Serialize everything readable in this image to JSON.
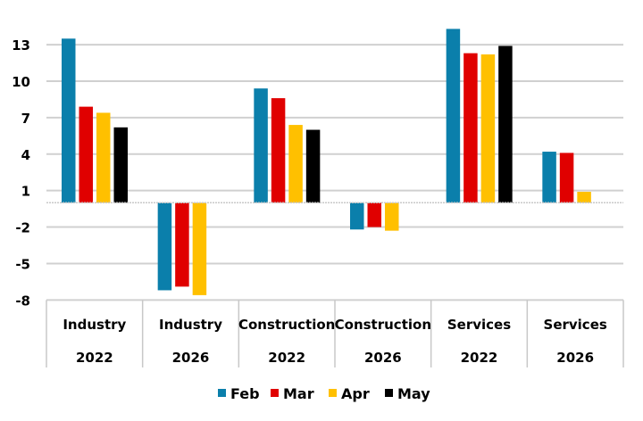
{
  "chart_data": {
    "type": "bar",
    "title": "",
    "xlabel": "",
    "ylabel": "",
    "ylim": [
      -8,
      14.5
    ],
    "yticks": [
      13,
      10,
      7,
      4,
      1,
      -2,
      -5,
      -8
    ],
    "grid": true,
    "legend_position": "bottom",
    "categories": [
      {
        "line1": "Industry",
        "line2": "2022"
      },
      {
        "line1": "Industry",
        "line2": "2026"
      },
      {
        "line1": "Construction",
        "line2": "2022"
      },
      {
        "line1": "Construction",
        "line2": "2026"
      },
      {
        "line1": "Services",
        "line2": "2022"
      },
      {
        "line1": "Services",
        "line2": "2026"
      }
    ],
    "series": [
      {
        "name": "Feb",
        "color": "#0B7FAB",
        "values": [
          13.5,
          -7.2,
          9.4,
          -2.2,
          14.3,
          4.2
        ]
      },
      {
        "name": "Mar",
        "color": "#E00000",
        "values": [
          7.9,
          -6.9,
          8.6,
          -2.0,
          12.3,
          4.1
        ]
      },
      {
        "name": "Apr",
        "color": "#FFC000",
        "values": [
          7.4,
          -7.6,
          6.4,
          -2.3,
          12.2,
          0.9
        ]
      },
      {
        "name": "May",
        "color": "#000000",
        "values": [
          6.2,
          null,
          6.0,
          null,
          12.9,
          null
        ]
      }
    ]
  }
}
